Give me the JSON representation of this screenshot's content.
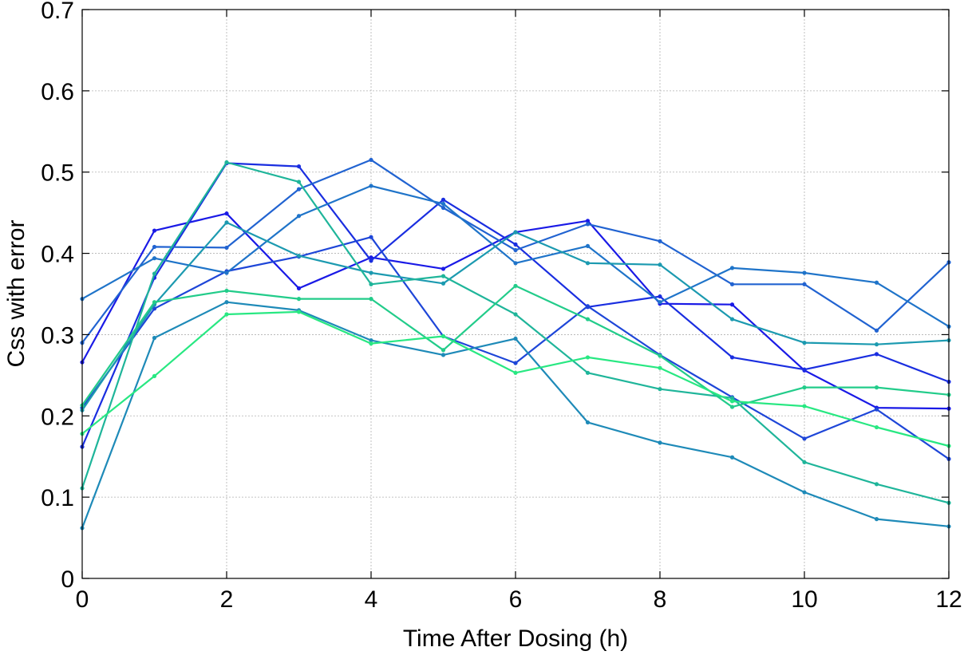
{
  "chart_data": {
    "type": "line",
    "title": "",
    "xlabel": "Time After Dosing (h)",
    "ylabel": "Css with error",
    "xlim": [
      0,
      12
    ],
    "ylim": [
      0,
      0.7
    ],
    "grid": true,
    "xticks": [
      0,
      2,
      4,
      6,
      8,
      10,
      12
    ],
    "xtick_labels": [
      "0",
      "2",
      "4",
      "6",
      "8",
      "10",
      "12"
    ],
    "yticks": [
      0,
      0.1,
      0.2,
      0.3,
      0.4,
      0.5,
      0.6,
      0.7
    ],
    "ytick_labels": [
      "0",
      "0.1",
      "0.2",
      "0.3",
      "0.4",
      "0.5",
      "0.6",
      "0.7"
    ],
    "x": [
      0,
      1,
      2,
      3,
      4,
      5,
      6,
      7,
      8,
      9,
      10,
      11,
      12
    ],
    "series": [
      {
        "color": "#1a1ae6",
        "values": [
          0.266,
          0.428,
          0.449,
          0.357,
          0.395,
          0.381,
          0.426,
          0.44,
          0.338,
          0.337,
          0.256,
          0.21,
          0.209
        ]
      },
      {
        "color": "#1a2ee0",
        "values": [
          0.162,
          0.37,
          0.511,
          0.507,
          0.391,
          0.466,
          0.411,
          0.334,
          0.347,
          0.272,
          0.257,
          0.276,
          0.242
        ]
      },
      {
        "color": "#1e46d8",
        "values": [
          0.21,
          0.332,
          0.378,
          0.396,
          0.42,
          0.298,
          0.265,
          0.335,
          0.275,
          0.223,
          0.172,
          0.208,
          0.147
        ]
      },
      {
        "color": "#2163d1",
        "values": [
          0.29,
          0.408,
          0.407,
          0.479,
          0.515,
          0.456,
          0.404,
          0.436,
          0.415,
          0.362,
          0.362,
          0.305,
          0.389
        ]
      },
      {
        "color": "#1f74c9",
        "values": [
          0.344,
          0.394,
          0.376,
          0.446,
          0.483,
          0.461,
          0.388,
          0.409,
          0.34,
          0.382,
          0.376,
          0.364,
          0.31
        ]
      },
      {
        "color": "#1e8ab8",
        "values": [
          0.062,
          0.296,
          0.34,
          0.33,
          0.293,
          0.275,
          0.295,
          0.192,
          0.167,
          0.149,
          0.106,
          0.073,
          0.064
        ]
      },
      {
        "color": "#1c9ab0",
        "values": [
          0.207,
          0.337,
          0.438,
          0.397,
          0.376,
          0.363,
          0.426,
          0.388,
          0.386,
          0.319,
          0.29,
          0.288,
          0.293
        ]
      },
      {
        "color": "#1fb59a",
        "values": [
          0.111,
          0.375,
          0.512,
          0.488,
          0.362,
          0.372,
          0.325,
          0.253,
          0.233,
          0.222,
          0.143,
          0.116,
          0.093
        ]
      },
      {
        "color": "#22cc8a",
        "values": [
          0.213,
          0.34,
          0.354,
          0.344,
          0.344,
          0.281,
          0.36,
          0.319,
          0.274,
          0.211,
          0.235,
          0.235,
          0.226
        ]
      },
      {
        "color": "#28e882",
        "values": [
          0.178,
          0.249,
          0.325,
          0.328,
          0.289,
          0.298,
          0.253,
          0.272,
          0.259,
          0.218,
          0.212,
          0.186,
          0.163
        ]
      }
    ]
  }
}
